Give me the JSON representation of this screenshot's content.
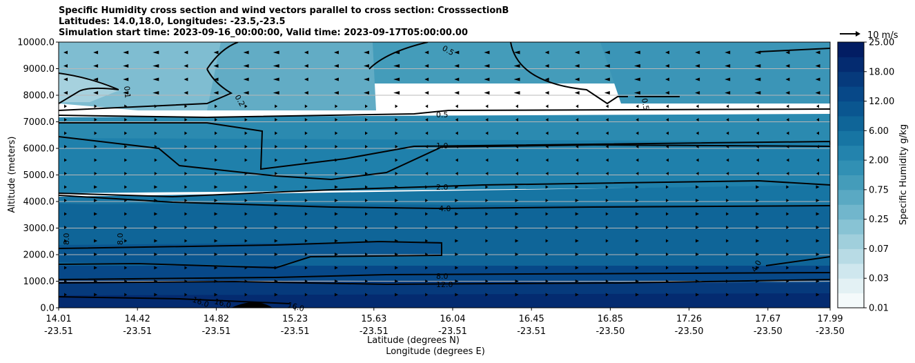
{
  "chart_data": {
    "type": "contour",
    "title": {
      "line1": "Specific Humidity cross section and wind vectors parallel to cross section: CrosssectionB",
      "line2": "Latitudes: 14.0,18.0, Longitudes: -23.5,-23.5",
      "line3": "Simulation start time: 2023-09-16_00:00:00, Valid time: 2023-09-17T05:00:00.00"
    },
    "ylabel": "Altitude (meters)",
    "xlabel_lat": "Latitude (degrees N)",
    "xlabel_lon": "Longitude (degrees E)",
    "ylim": [
      0,
      10000
    ],
    "y_ticks": [
      "0.0",
      "1000.0",
      "2000.0",
      "3000.0",
      "4000.0",
      "5000.0",
      "6000.0",
      "7000.0",
      "8000.0",
      "9000.0",
      "10000.0"
    ],
    "x_ticks": [
      {
        "lat": "14.01",
        "lon": "-23.51"
      },
      {
        "lat": "14.42",
        "lon": "-23.51"
      },
      {
        "lat": "14.82",
        "lon": "-23.51"
      },
      {
        "lat": "15.23",
        "lon": "-23.51"
      },
      {
        "lat": "15.63",
        "lon": "-23.51"
      },
      {
        "lat": "16.04",
        "lon": "-23.51"
      },
      {
        "lat": "16.45",
        "lon": "-23.51"
      },
      {
        "lat": "16.85",
        "lon": "-23.50"
      },
      {
        "lat": "17.26",
        "lon": "-23.50"
      },
      {
        "lat": "17.67",
        "lon": "-23.50"
      },
      {
        "lat": "17.99",
        "lon": "-23.50"
      }
    ],
    "grid": "horizontal",
    "colorbar": {
      "label": "Specific Humidity g/kg",
      "ticks": [
        "0.01",
        "0.03",
        "0.07",
        "0.25",
        "0.75",
        "2.00",
        "6.00",
        "12.00",
        "18.00",
        "25.00"
      ],
      "colors": [
        "#f4fafb",
        "#e3f1f4",
        "#cfe7ee",
        "#b8dbe5",
        "#a0cfdc",
        "#88c3d4",
        "#71b6cc",
        "#5aa9c3",
        "#449cba",
        "#3190b4",
        "#2383ad",
        "#1775a3",
        "#0f6598",
        "#0a5690",
        "#074888",
        "#063a7c",
        "#042b70",
        "#021d63"
      ],
      "levels": [
        0.01,
        0.02,
        0.03,
        0.05,
        0.07,
        0.1,
        0.25,
        0.5,
        0.75,
        1,
        2,
        4,
        6,
        8,
        12,
        15,
        18,
        21,
        25
      ]
    },
    "contour_labels": [
      "0.1",
      "0.2",
      "0.5",
      "1.0",
      "2.0",
      "4.0",
      "8.0",
      "12.0",
      "16.0"
    ],
    "wind_key": "10 m/s"
  }
}
